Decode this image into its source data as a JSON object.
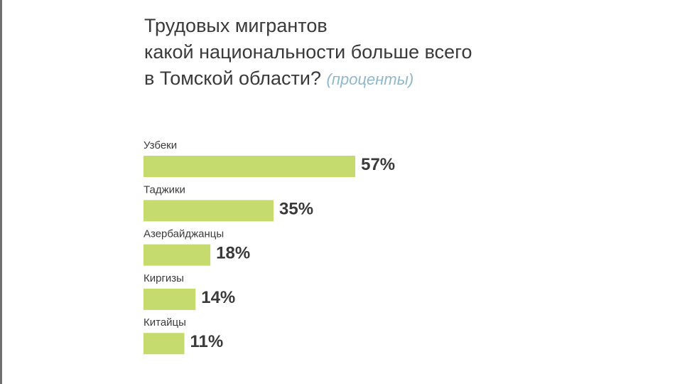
{
  "title": {
    "line1": "Трудовых мигрантов",
    "line2": "какой национальности больше всего",
    "line3": "в Томской области?",
    "unit": "(проценты)"
  },
  "chart_data": {
    "type": "bar",
    "orientation": "horizontal",
    "categories": [
      "Узбеки",
      "Таджики",
      "Азербайджанцы",
      "Киргизы",
      "Китайцы"
    ],
    "values": [
      57,
      35,
      18,
      14,
      11
    ],
    "value_labels": [
      "57%",
      "35%",
      "18%",
      "14%",
      "11%"
    ],
    "bar_color": "#c5db6e",
    "grid": false,
    "legend": "none"
  }
}
